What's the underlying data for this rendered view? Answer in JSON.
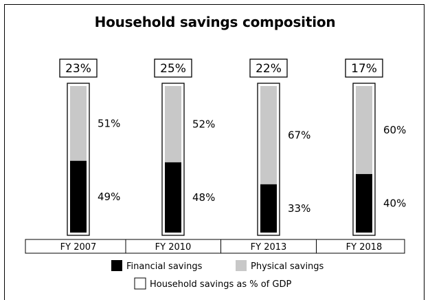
{
  "chart_data": {
    "type": "bar",
    "stacked": true,
    "title": "Household savings composition",
    "categories": [
      "FY 2007",
      "FY 2010",
      "FY 2013",
      "FY 2018"
    ],
    "series": [
      {
        "name": "Financial savings",
        "values": [
          49,
          48,
          33,
          40
        ],
        "labels": [
          "49%",
          "48%",
          "33%",
          "40%"
        ],
        "color": "#000000"
      },
      {
        "name": "Physical savings",
        "values": [
          51,
          52,
          67,
          60
        ],
        "labels": [
          "51%",
          "52%",
          "67%",
          "60%"
        ],
        "color": "#c8c8c8"
      }
    ],
    "gdp_share": {
      "name": "Household savings as % of GDP",
      "values": [
        23,
        25,
        22,
        17
      ],
      "labels": [
        "23%",
        "25%",
        "22%",
        "17%"
      ]
    },
    "ylim": [
      0,
      100
    ],
    "legend_position": "bottom",
    "grid": false
  }
}
